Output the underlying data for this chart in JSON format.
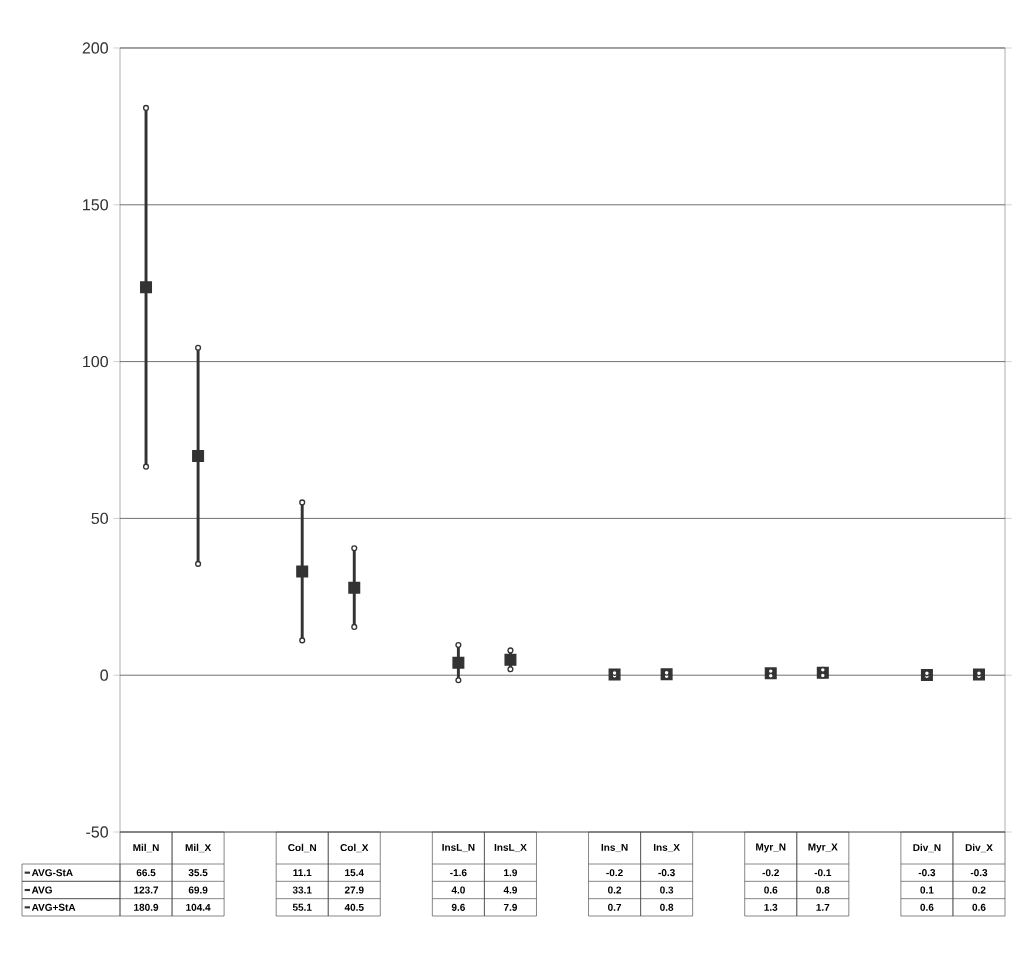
{
  "chart_data": {
    "type": "scatter",
    "categories": [
      "Mil_N",
      "Mil_X",
      null,
      "Col_N",
      "Col_X",
      null,
      "InsL_N",
      "InsL_X",
      null,
      "Ins_N",
      "Ins_X",
      null,
      "Myr_N",
      "Myr_X",
      null,
      "Div_N",
      "Div_X"
    ],
    "series": [
      {
        "name": "AVG-StA",
        "color": "#333333",
        "values": [
          66.5,
          35.5,
          null,
          11.1,
          15.4,
          null,
          -1.6,
          1.9,
          null,
          -0.2,
          -0.3,
          null,
          -0.2,
          -0.1,
          null,
          -0.3,
          -0.3
        ],
        "value_labels": [
          "66.5",
          "35.5",
          null,
          "11.1",
          "15.4",
          null,
          "-1.6",
          "1.9",
          null,
          "-0.2",
          "-0.3",
          null,
          "-0.2",
          "-0.1",
          null,
          "-0.3",
          "-0.3"
        ]
      },
      {
        "name": "AVG",
        "color": "#333333",
        "values": [
          123.7,
          69.9,
          null,
          33.1,
          27.9,
          null,
          4.0,
          4.9,
          null,
          0.2,
          0.3,
          null,
          0.6,
          0.8,
          null,
          0.1,
          0.2
        ],
        "value_labels": [
          "123.7",
          "69.9",
          null,
          "33.1",
          "27.9",
          null,
          "4.0",
          "4.9",
          null,
          "0.2",
          "0.3",
          null,
          "0.6",
          "0.8",
          null,
          "0.1",
          "0.2"
        ]
      },
      {
        "name": "AVG+StA",
        "color": "#333333",
        "values": [
          180.9,
          104.4,
          null,
          55.1,
          40.5,
          null,
          9.6,
          7.9,
          null,
          0.7,
          0.8,
          null,
          1.3,
          1.7,
          null,
          0.6,
          0.6
        ],
        "value_labels": [
          "180.9",
          "104.4",
          null,
          "55.1",
          "40.5",
          null,
          "9.6",
          "7.9",
          null,
          "0.7",
          "0.8",
          null,
          "1.3",
          "1.7",
          null,
          "0.6",
          "0.6"
        ]
      }
    ],
    "ylim": [
      -50,
      200
    ],
    "yticks": [
      -50,
      0,
      50,
      100,
      150,
      200
    ],
    "grid": "y",
    "legend": "bottom left"
  }
}
